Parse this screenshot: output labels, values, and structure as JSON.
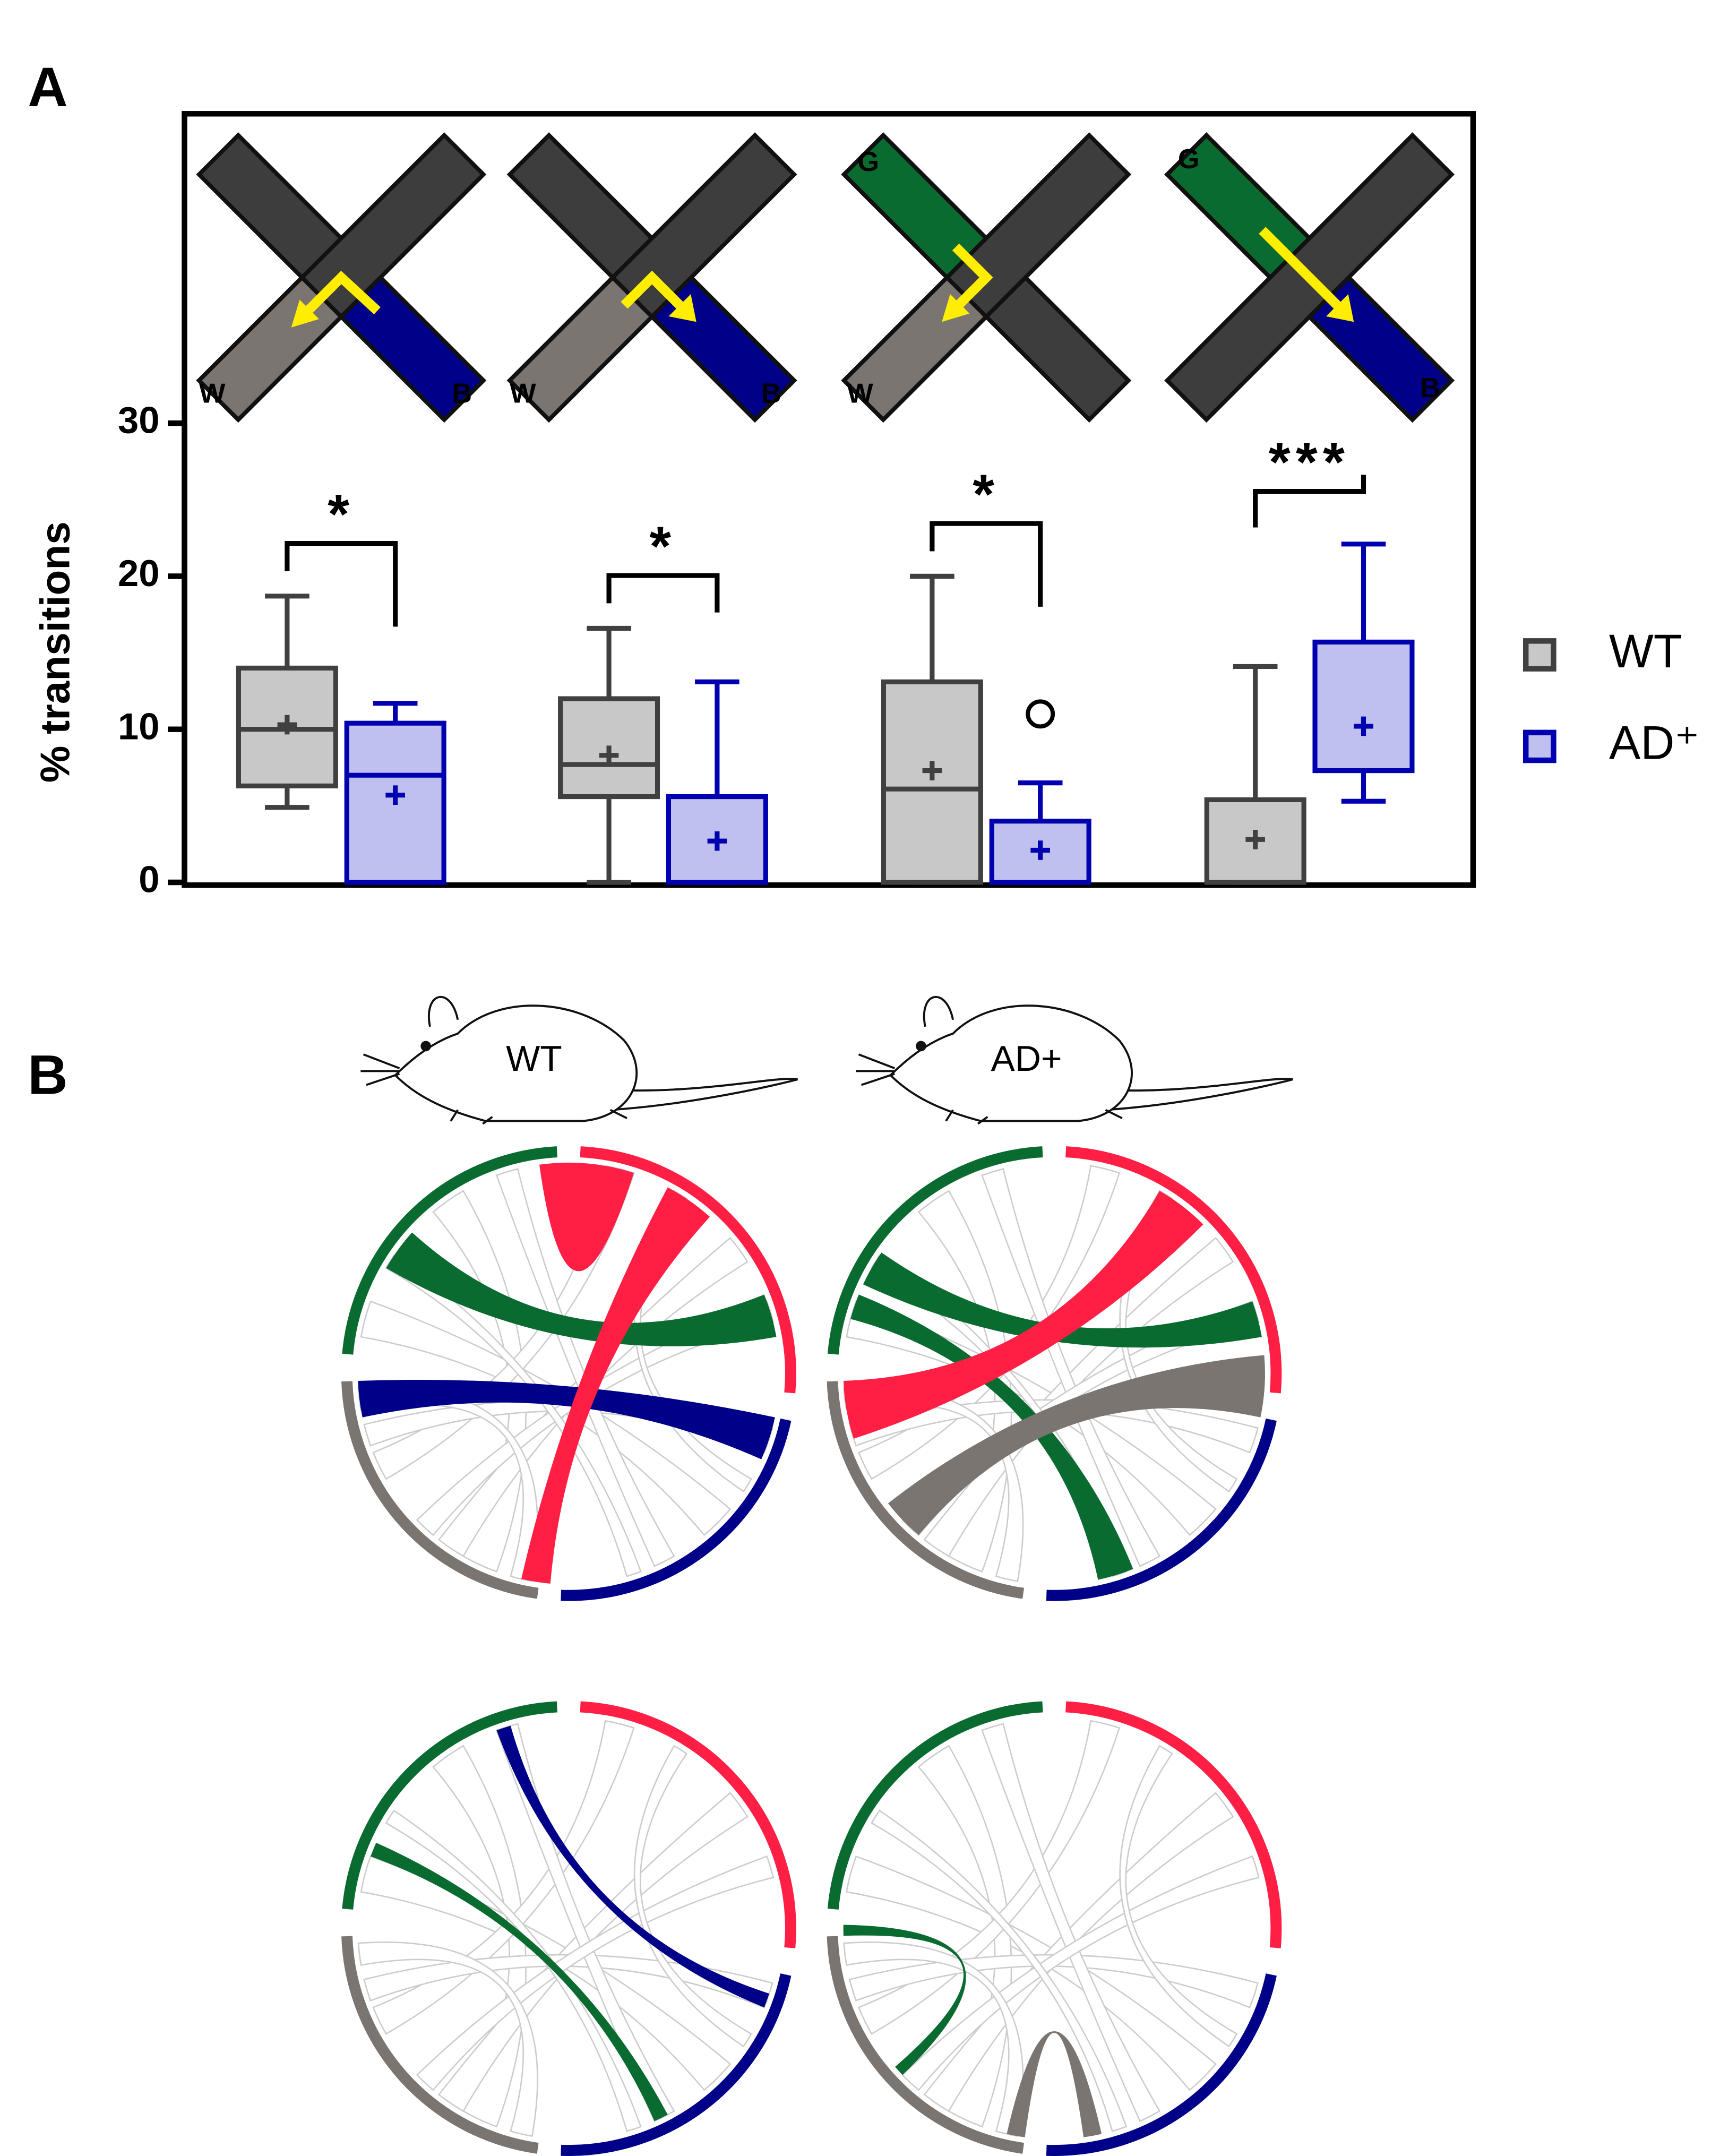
{
  "chart_data": {
    "type": "box",
    "y_label": "% transitions",
    "categories": [
      null,
      null,
      null,
      null
    ],
    "ylim": [
      0,
      30
    ],
    "yticks": [
      0,
      10,
      20,
      30
    ],
    "series": [
      {
        "name": "WT",
        "color": "#404040",
        "fill": "#c8c8c8",
        "boxes": [
          {
            "min": 4.9,
            "q1": 6.3,
            "median": 10.0,
            "q3": 14.0,
            "max": 18.7,
            "mean": 10.3,
            "outliers": []
          },
          {
            "min": 0,
            "q1": 5.6,
            "median": 7.7,
            "q3": 12.0,
            "max": 16.6,
            "mean": 8.3,
            "outliers": []
          },
          {
            "min": 0,
            "q1": 0,
            "median": 6.1,
            "q3": 13.1,
            "max": 20.0,
            "mean": 7.3,
            "outliers": []
          },
          {
            "min": 0,
            "q1": 0,
            "median": 0,
            "q3": 5.4,
            "max": 14.1,
            "mean": 2.8,
            "outliers": []
          }
        ]
      },
      {
        "name": "AD⁺",
        "color": "#0000b0",
        "fill": "#bfc0f0",
        "boxes": [
          {
            "min": 0,
            "q1": 0,
            "median": 7.0,
            "q3": 10.4,
            "max": 11.7,
            "mean": 5.7,
            "outliers": []
          },
          {
            "min": 0,
            "q1": 0,
            "median": 0,
            "q3": 5.6,
            "max": 13.1,
            "mean": 2.7,
            "outliers": []
          },
          {
            "min": 0,
            "q1": 0,
            "median": 0,
            "q3": 4.0,
            "max": 6.5,
            "mean": 2.1,
            "outliers": [
              11.0
            ]
          },
          {
            "min": 5.3,
            "q1": 7.3,
            "median": 7.3,
            "q3": 15.7,
            "max": 22.1,
            "mean": 10.2,
            "outliers": []
          }
        ]
      }
    ],
    "significance": [
      "*",
      "*",
      "*",
      "***"
    ],
    "legend": "right"
  },
  "panel_labels": [
    "A",
    "B"
  ],
  "maze_labels": [
    [
      "W",
      "B"
    ],
    [
      "W",
      "B"
    ],
    [
      "G",
      "W"
    ],
    [
      "G",
      "B"
    ]
  ],
  "mouse_labels": [
    "WT",
    "AD+"
  ]
}
